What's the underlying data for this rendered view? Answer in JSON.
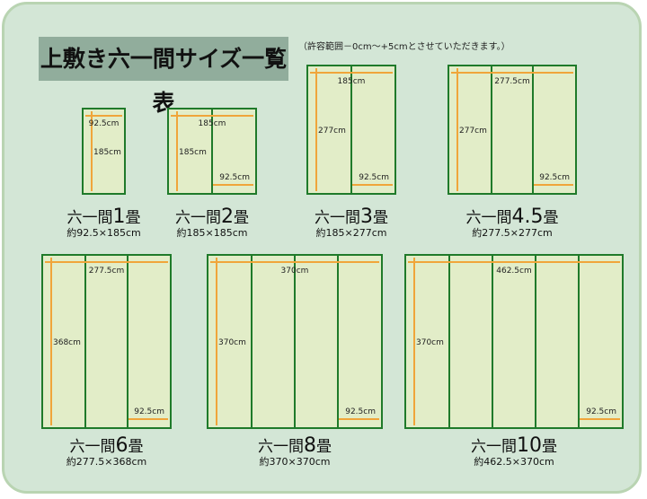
{
  "title": "上敷き六一間サイズ一覧表",
  "note": "（許容範囲－0cm～+5cmとさせていただきます。）",
  "colors": {
    "background": "#d3e6d6",
    "title_bg": "#91ad9c",
    "border": "#1f7a2a",
    "mat": "#e2edc8",
    "arrow": "#f0a53a"
  },
  "rooms": [
    {
      "prefix": "六一間",
      "count": "1",
      "suffix": "畳",
      "size": "約92.5×185cm",
      "panels": 1,
      "width_label": "92.5cm",
      "height_label": "185cm",
      "panel_label": ""
    },
    {
      "prefix": "六一間",
      "count": "2",
      "suffix": "畳",
      "size": "約185×185cm",
      "panels": 2,
      "width_label": "185cm",
      "height_label": "185cm",
      "panel_label": "92.5cm"
    },
    {
      "prefix": "六一間",
      "count": "3",
      "suffix": "畳",
      "size": "約185×277cm",
      "panels": 2,
      "width_label": "185cm",
      "height_label": "277cm",
      "panel_label": "92.5cm"
    },
    {
      "prefix": "六一間",
      "count": "4.5",
      "suffix": "畳",
      "size": "約277.5×277cm",
      "panels": 3,
      "width_label": "277.5cm",
      "height_label": "277cm",
      "panel_label": "92.5cm"
    },
    {
      "prefix": "六一間",
      "count": "6",
      "suffix": "畳",
      "size": "約277.5×368cm",
      "panels": 3,
      "width_label": "277.5cm",
      "height_label": "368cm",
      "panel_label": "92.5cm"
    },
    {
      "prefix": "六一間",
      "count": "8",
      "suffix": "畳",
      "size": "約370×370cm",
      "panels": 4,
      "width_label": "370cm",
      "height_label": "370cm",
      "panel_label": "92.5cm"
    },
    {
      "prefix": "六一間",
      "count": "10",
      "suffix": "畳",
      "size": "約462.5×370cm",
      "panels": 5,
      "width_label": "462.5cm",
      "height_label": "370cm",
      "panel_label": "92.5cm"
    }
  ]
}
